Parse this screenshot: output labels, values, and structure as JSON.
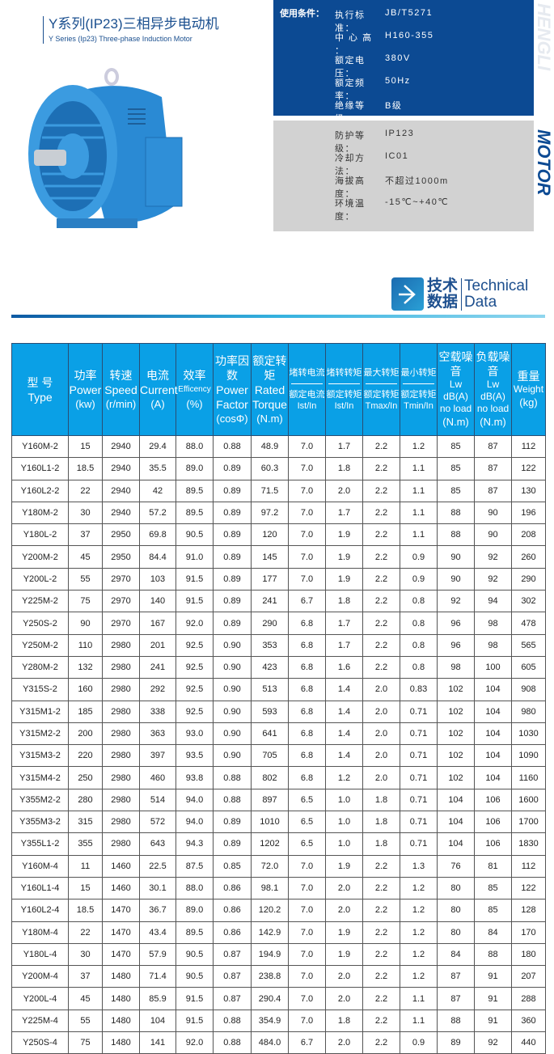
{
  "title": {
    "cn": "Y系列(IP23)三相异步电动机",
    "en": "Y Series (Ip23) Three-phase Induction Motor"
  },
  "conditions": {
    "label": "使用条件：",
    "blue": [
      {
        "k": "执行标准：",
        "v": "JB/T5271"
      },
      {
        "k": "中 心 高 ：",
        "v": "H160-355"
      },
      {
        "k": "额定电压：",
        "v": "380V"
      },
      {
        "k": "额定频率：",
        "v": "50Hz"
      },
      {
        "k": "绝缘等级：",
        "v": "B级"
      }
    ],
    "gray": [
      {
        "k": "防护等级：",
        "v": "IP123"
      },
      {
        "k": "冷却方法：",
        "v": "IC01"
      },
      {
        "k": "海拔高度：",
        "v": "不超过1000m"
      },
      {
        "k": "环境温度：",
        "v": "-15℃~+40℃"
      }
    ]
  },
  "brand": {
    "top": "HENGLI",
    "bottom": "MOTOR"
  },
  "section": {
    "cn": "技术数据",
    "en1": "Technical",
    "en2": "Data"
  },
  "headers": [
    {
      "cn": "型  号",
      "en": "Type"
    },
    {
      "cn": "功率",
      "en": "Power",
      "unit": "(kw)"
    },
    {
      "cn": "转速",
      "en": "Speed",
      "unit": "(r/min)"
    },
    {
      "cn": "电流",
      "en": "Current",
      "unit": "(A)"
    },
    {
      "cn": "效率",
      "en": "Efficency",
      "unit": "(%)"
    },
    {
      "cn": "功率因数",
      "en": "Power Factor",
      "unit": "(cosΦ)"
    },
    {
      "cn": "额定转矩",
      "en": "Rated Torque",
      "unit": "(N.m)"
    },
    {
      "cn": "堵转电流",
      "cn2": "额定电流",
      "unit": "Ist/In"
    },
    {
      "cn": "堵转转矩",
      "cn2": "额定转矩",
      "unit": "Ist/In"
    },
    {
      "cn": "最大转矩",
      "cn2": "额定转矩",
      "unit": "Tmax/In"
    },
    {
      "cn": "最小转矩",
      "cn2": "额定转矩",
      "unit": "Tmin/In"
    },
    {
      "cn": "空载噪音",
      "en": "Lw dB(A) no load",
      "unit": "(N.m)"
    },
    {
      "cn": "负载噪音",
      "en": "Lw dB(A) no load",
      "unit": "(N.m)"
    },
    {
      "cn": "重量",
      "en": "Weight",
      "unit": "(kg)"
    }
  ],
  "rows": [
    [
      "Y160M-2",
      "15",
      "2940",
      "29.4",
      "88.0",
      "0.88",
      "48.9",
      "7.0",
      "1.7",
      "2.2",
      "1.2",
      "85",
      "87",
      "112"
    ],
    [
      "Y160L1-2",
      "18.5",
      "2940",
      "35.5",
      "89.0",
      "0.89",
      "60.3",
      "7.0",
      "1.8",
      "2.2",
      "1.1",
      "85",
      "87",
      "122"
    ],
    [
      "Y160L2-2",
      "22",
      "2940",
      "42",
      "89.5",
      "0.89",
      "71.5",
      "7.0",
      "2.0",
      "2.2",
      "1.1",
      "85",
      "87",
      "130"
    ],
    [
      "Y180M-2",
      "30",
      "2940",
      "57.2",
      "89.5",
      "0.89",
      "97.2",
      "7.0",
      "1.7",
      "2.2",
      "1.1",
      "88",
      "90",
      "196"
    ],
    [
      "Y180L-2",
      "37",
      "2950",
      "69.8",
      "90.5",
      "0.89",
      "120",
      "7.0",
      "1.9",
      "2.2",
      "1.1",
      "88",
      "90",
      "208"
    ],
    [
      "Y200M-2",
      "45",
      "2950",
      "84.4",
      "91.0",
      "0.89",
      "145",
      "7.0",
      "1.9",
      "2.2",
      "0.9",
      "90",
      "92",
      "260"
    ],
    [
      "Y200L-2",
      "55",
      "2970",
      "103",
      "91.5",
      "0.89",
      "177",
      "7.0",
      "1.9",
      "2.2",
      "0.9",
      "90",
      "92",
      "290"
    ],
    [
      "Y225M-2",
      "75",
      "2970",
      "140",
      "91.5",
      "0.89",
      "241",
      "6.7",
      "1.8",
      "2.2",
      "0.8",
      "92",
      "94",
      "302"
    ],
    [
      "Y250S-2",
      "90",
      "2970",
      "167",
      "92.0",
      "0.89",
      "290",
      "6.8",
      "1.7",
      "2.2",
      "0.8",
      "96",
      "98",
      "478"
    ],
    [
      "Y250M-2",
      "110",
      "2980",
      "201",
      "92.5",
      "0.90",
      "353",
      "6.8",
      "1.7",
      "2.2",
      "0.8",
      "96",
      "98",
      "565"
    ],
    [
      "Y280M-2",
      "132",
      "2980",
      "241",
      "92.5",
      "0.90",
      "423",
      "6.8",
      "1.6",
      "2.2",
      "0.8",
      "98",
      "100",
      "605"
    ],
    [
      "Y315S-2",
      "160",
      "2980",
      "292",
      "92.5",
      "0.90",
      "513",
      "6.8",
      "1.4",
      "2.0",
      "0.83",
      "102",
      "104",
      "908"
    ],
    [
      "Y315M1-2",
      "185",
      "2980",
      "338",
      "92.5",
      "0.90",
      "593",
      "6.8",
      "1.4",
      "2.0",
      "0.71",
      "102",
      "104",
      "980"
    ],
    [
      "Y315M2-2",
      "200",
      "2980",
      "363",
      "93.0",
      "0.90",
      "641",
      "6.8",
      "1.4",
      "2.0",
      "0.71",
      "102",
      "104",
      "1030"
    ],
    [
      "Y315M3-2",
      "220",
      "2980",
      "397",
      "93.5",
      "0.90",
      "705",
      "6.8",
      "1.4",
      "2.0",
      "0.71",
      "102",
      "104",
      "1090"
    ],
    [
      "Y315M4-2",
      "250",
      "2980",
      "460",
      "93.8",
      "0.88",
      "802",
      "6.8",
      "1.2",
      "2.0",
      "0.71",
      "102",
      "104",
      "1160"
    ],
    [
      "Y355M2-2",
      "280",
      "2980",
      "514",
      "94.0",
      "0.88",
      "897",
      "6.5",
      "1.0",
      "1.8",
      "0.71",
      "104",
      "106",
      "1600"
    ],
    [
      "Y355M3-2",
      "315",
      "2980",
      "572",
      "94.0",
      "0.89",
      "1010",
      "6.5",
      "1.0",
      "1.8",
      "0.71",
      "104",
      "106",
      "1700"
    ],
    [
      "Y355L1-2",
      "355",
      "2980",
      "643",
      "94.3",
      "0.89",
      "1202",
      "6.5",
      "1.0",
      "1.8",
      "0.71",
      "104",
      "106",
      "1830"
    ],
    [
      "Y160M-4",
      "11",
      "1460",
      "22.5",
      "87.5",
      "0.85",
      "72.0",
      "7.0",
      "1.9",
      "2.2",
      "1.3",
      "76",
      "81",
      "112"
    ],
    [
      "Y160L1-4",
      "15",
      "1460",
      "30.1",
      "88.0",
      "0.86",
      "98.1",
      "7.0",
      "2.0",
      "2.2",
      "1.2",
      "80",
      "85",
      "122"
    ],
    [
      "Y160L2-4",
      "18.5",
      "1470",
      "36.7",
      "89.0",
      "0.86",
      "120.2",
      "7.0",
      "2.0",
      "2.2",
      "1.2",
      "80",
      "85",
      "128"
    ],
    [
      "Y180M-4",
      "22",
      "1470",
      "43.4",
      "89.5",
      "0.86",
      "142.9",
      "7.0",
      "1.9",
      "2.2",
      "1.2",
      "80",
      "84",
      "170"
    ],
    [
      "Y180L-4",
      "30",
      "1470",
      "57.9",
      "90.5",
      "0.87",
      "194.9",
      "7.0",
      "1.9",
      "2.2",
      "1.2",
      "84",
      "88",
      "180"
    ],
    [
      "Y200M-4",
      "37",
      "1480",
      "71.4",
      "90.5",
      "0.87",
      "238.8",
      "7.0",
      "2.0",
      "2.2",
      "1.2",
      "87",
      "91",
      "207"
    ],
    [
      "Y200L-4",
      "45",
      "1480",
      "85.9",
      "91.5",
      "0.87",
      "290.4",
      "7.0",
      "2.0",
      "2.2",
      "1.1",
      "87",
      "91",
      "288"
    ],
    [
      "Y225M-4",
      "55",
      "1480",
      "104",
      "91.5",
      "0.88",
      "354.9",
      "7.0",
      "1.8",
      "2.2",
      "1.1",
      "88",
      "91",
      "360"
    ],
    [
      "Y250S-4",
      "75",
      "1480",
      "141",
      "92.0",
      "0.88",
      "484.0",
      "6.7",
      "2.0",
      "2.2",
      "0.9",
      "89",
      "92",
      "440"
    ]
  ]
}
